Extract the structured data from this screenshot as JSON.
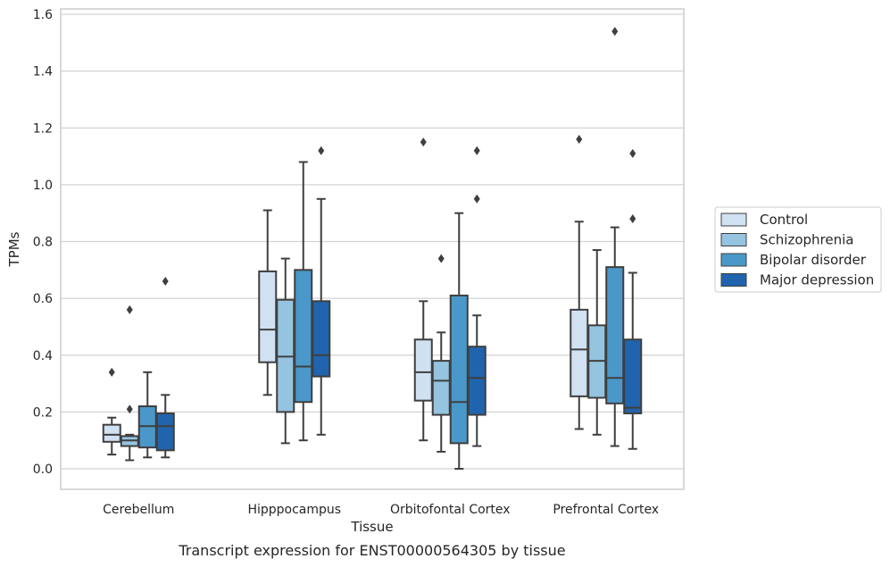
{
  "chart_data": {
    "type": "box",
    "xlabel": "Tissue",
    "ylabel": "TPMs",
    "caption": "Transcript expression for ENST00000564305 by tissue",
    "ylim": [
      -0.07,
      1.62
    ],
    "yticks": [
      "0.0",
      "0.2",
      "0.4",
      "0.6",
      "0.8",
      "1.0",
      "1.2",
      "1.4",
      "1.6"
    ],
    "grid": true,
    "legend_position": "right",
    "categories": [
      "Cerebellum",
      "Hipppocampus",
      "Orbitofontal Cortex",
      "Prefrontal Cortex"
    ],
    "series": [
      {
        "name": "Control",
        "color": "#d0e1f2",
        "boxes": [
          {
            "whislo": 0.05,
            "q1": 0.095,
            "med": 0.12,
            "q3": 0.155,
            "whishi": 0.18,
            "fliers": [
              0.34
            ]
          },
          {
            "whislo": 0.26,
            "q1": 0.375,
            "med": 0.49,
            "q3": 0.695,
            "whishi": 0.91,
            "fliers": []
          },
          {
            "whislo": 0.1,
            "q1": 0.24,
            "med": 0.34,
            "q3": 0.455,
            "whishi": 0.59,
            "fliers": [
              1.15
            ]
          },
          {
            "whislo": 0.14,
            "q1": 0.255,
            "med": 0.42,
            "q3": 0.56,
            "whishi": 0.87,
            "fliers": [
              1.16
            ]
          }
        ]
      },
      {
        "name": "Schizophrenia",
        "color": "#94c4df",
        "boxes": [
          {
            "whislo": 0.03,
            "q1": 0.08,
            "med": 0.1,
            "q3": 0.115,
            "whishi": 0.12,
            "fliers": [
              0.21,
              0.56
            ]
          },
          {
            "whislo": 0.09,
            "q1": 0.2,
            "med": 0.395,
            "q3": 0.595,
            "whishi": 0.74,
            "fliers": []
          },
          {
            "whislo": 0.06,
            "q1": 0.19,
            "med": 0.31,
            "q3": 0.38,
            "whishi": 0.48,
            "fliers": [
              0.74
            ]
          },
          {
            "whislo": 0.12,
            "q1": 0.25,
            "med": 0.38,
            "q3": 0.505,
            "whishi": 0.77,
            "fliers": []
          }
        ]
      },
      {
        "name": "Bipolar disorder",
        "color": "#4a98c9",
        "boxes": [
          {
            "whislo": 0.04,
            "q1": 0.075,
            "med": 0.15,
            "q3": 0.22,
            "whishi": 0.34,
            "fliers": []
          },
          {
            "whislo": 0.1,
            "q1": 0.235,
            "med": 0.36,
            "q3": 0.7,
            "whishi": 1.08,
            "fliers": []
          },
          {
            "whislo": 0.0,
            "q1": 0.09,
            "med": 0.235,
            "q3": 0.61,
            "whishi": 0.9,
            "fliers": []
          },
          {
            "whislo": 0.08,
            "q1": 0.23,
            "med": 0.32,
            "q3": 0.71,
            "whishi": 0.85,
            "fliers": [
              1.54
            ]
          }
        ]
      },
      {
        "name": "Major depression",
        "color": "#2064ae",
        "boxes": [
          {
            "whislo": 0.04,
            "q1": 0.065,
            "med": 0.15,
            "q3": 0.195,
            "whishi": 0.26,
            "fliers": [
              0.66
            ]
          },
          {
            "whislo": 0.12,
            "q1": 0.325,
            "med": 0.4,
            "q3": 0.59,
            "whishi": 0.95,
            "fliers": [
              1.12
            ]
          },
          {
            "whislo": 0.08,
            "q1": 0.19,
            "med": 0.32,
            "q3": 0.43,
            "whishi": 0.54,
            "fliers": [
              0.95,
              1.12
            ]
          },
          {
            "whislo": 0.07,
            "q1": 0.195,
            "med": 0.215,
            "q3": 0.455,
            "whishi": 0.69,
            "fliers": [
              0.88,
              1.11
            ]
          }
        ]
      }
    ]
  }
}
